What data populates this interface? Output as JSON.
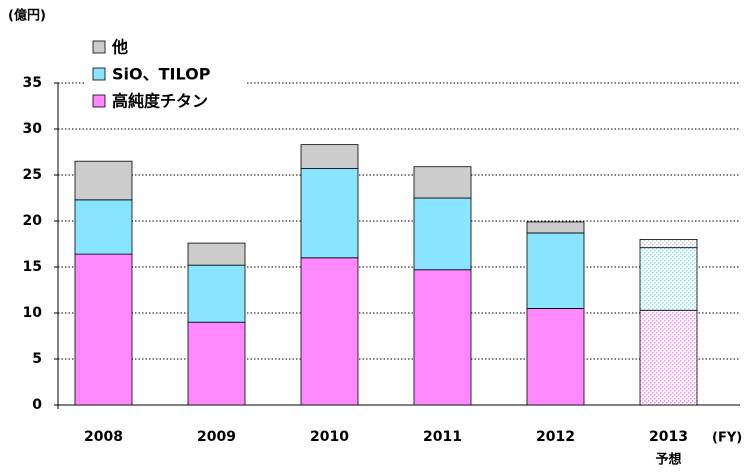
{
  "chart_data": {
    "type": "stacked_bar",
    "y_unit_label": "(億円)",
    "x_unit_label": "(FY)",
    "categories": [
      "2008",
      "2009",
      "2010",
      "2011",
      "2012",
      "2013"
    ],
    "series": [
      {
        "name": "高純度チタン",
        "color": "#ff88ff",
        "values": [
          16.4,
          9.0,
          16.0,
          14.7,
          10.5,
          10.3
        ]
      },
      {
        "name": "SiO、TILOP",
        "color": "#88e4ff",
        "values": [
          5.9,
          6.2,
          9.7,
          7.8,
          8.2,
          6.8
        ]
      },
      {
        "name": "他",
        "color": "#cccccc",
        "values": [
          4.2,
          2.4,
          2.6,
          3.4,
          1.2,
          0.9
        ]
      }
    ],
    "annotation": {
      "text": "予想",
      "category": "2013"
    },
    "ylim": [
      0,
      35
    ],
    "yticks": [
      0,
      5,
      10,
      15,
      20,
      25,
      30,
      35
    ],
    "grid": true
  }
}
